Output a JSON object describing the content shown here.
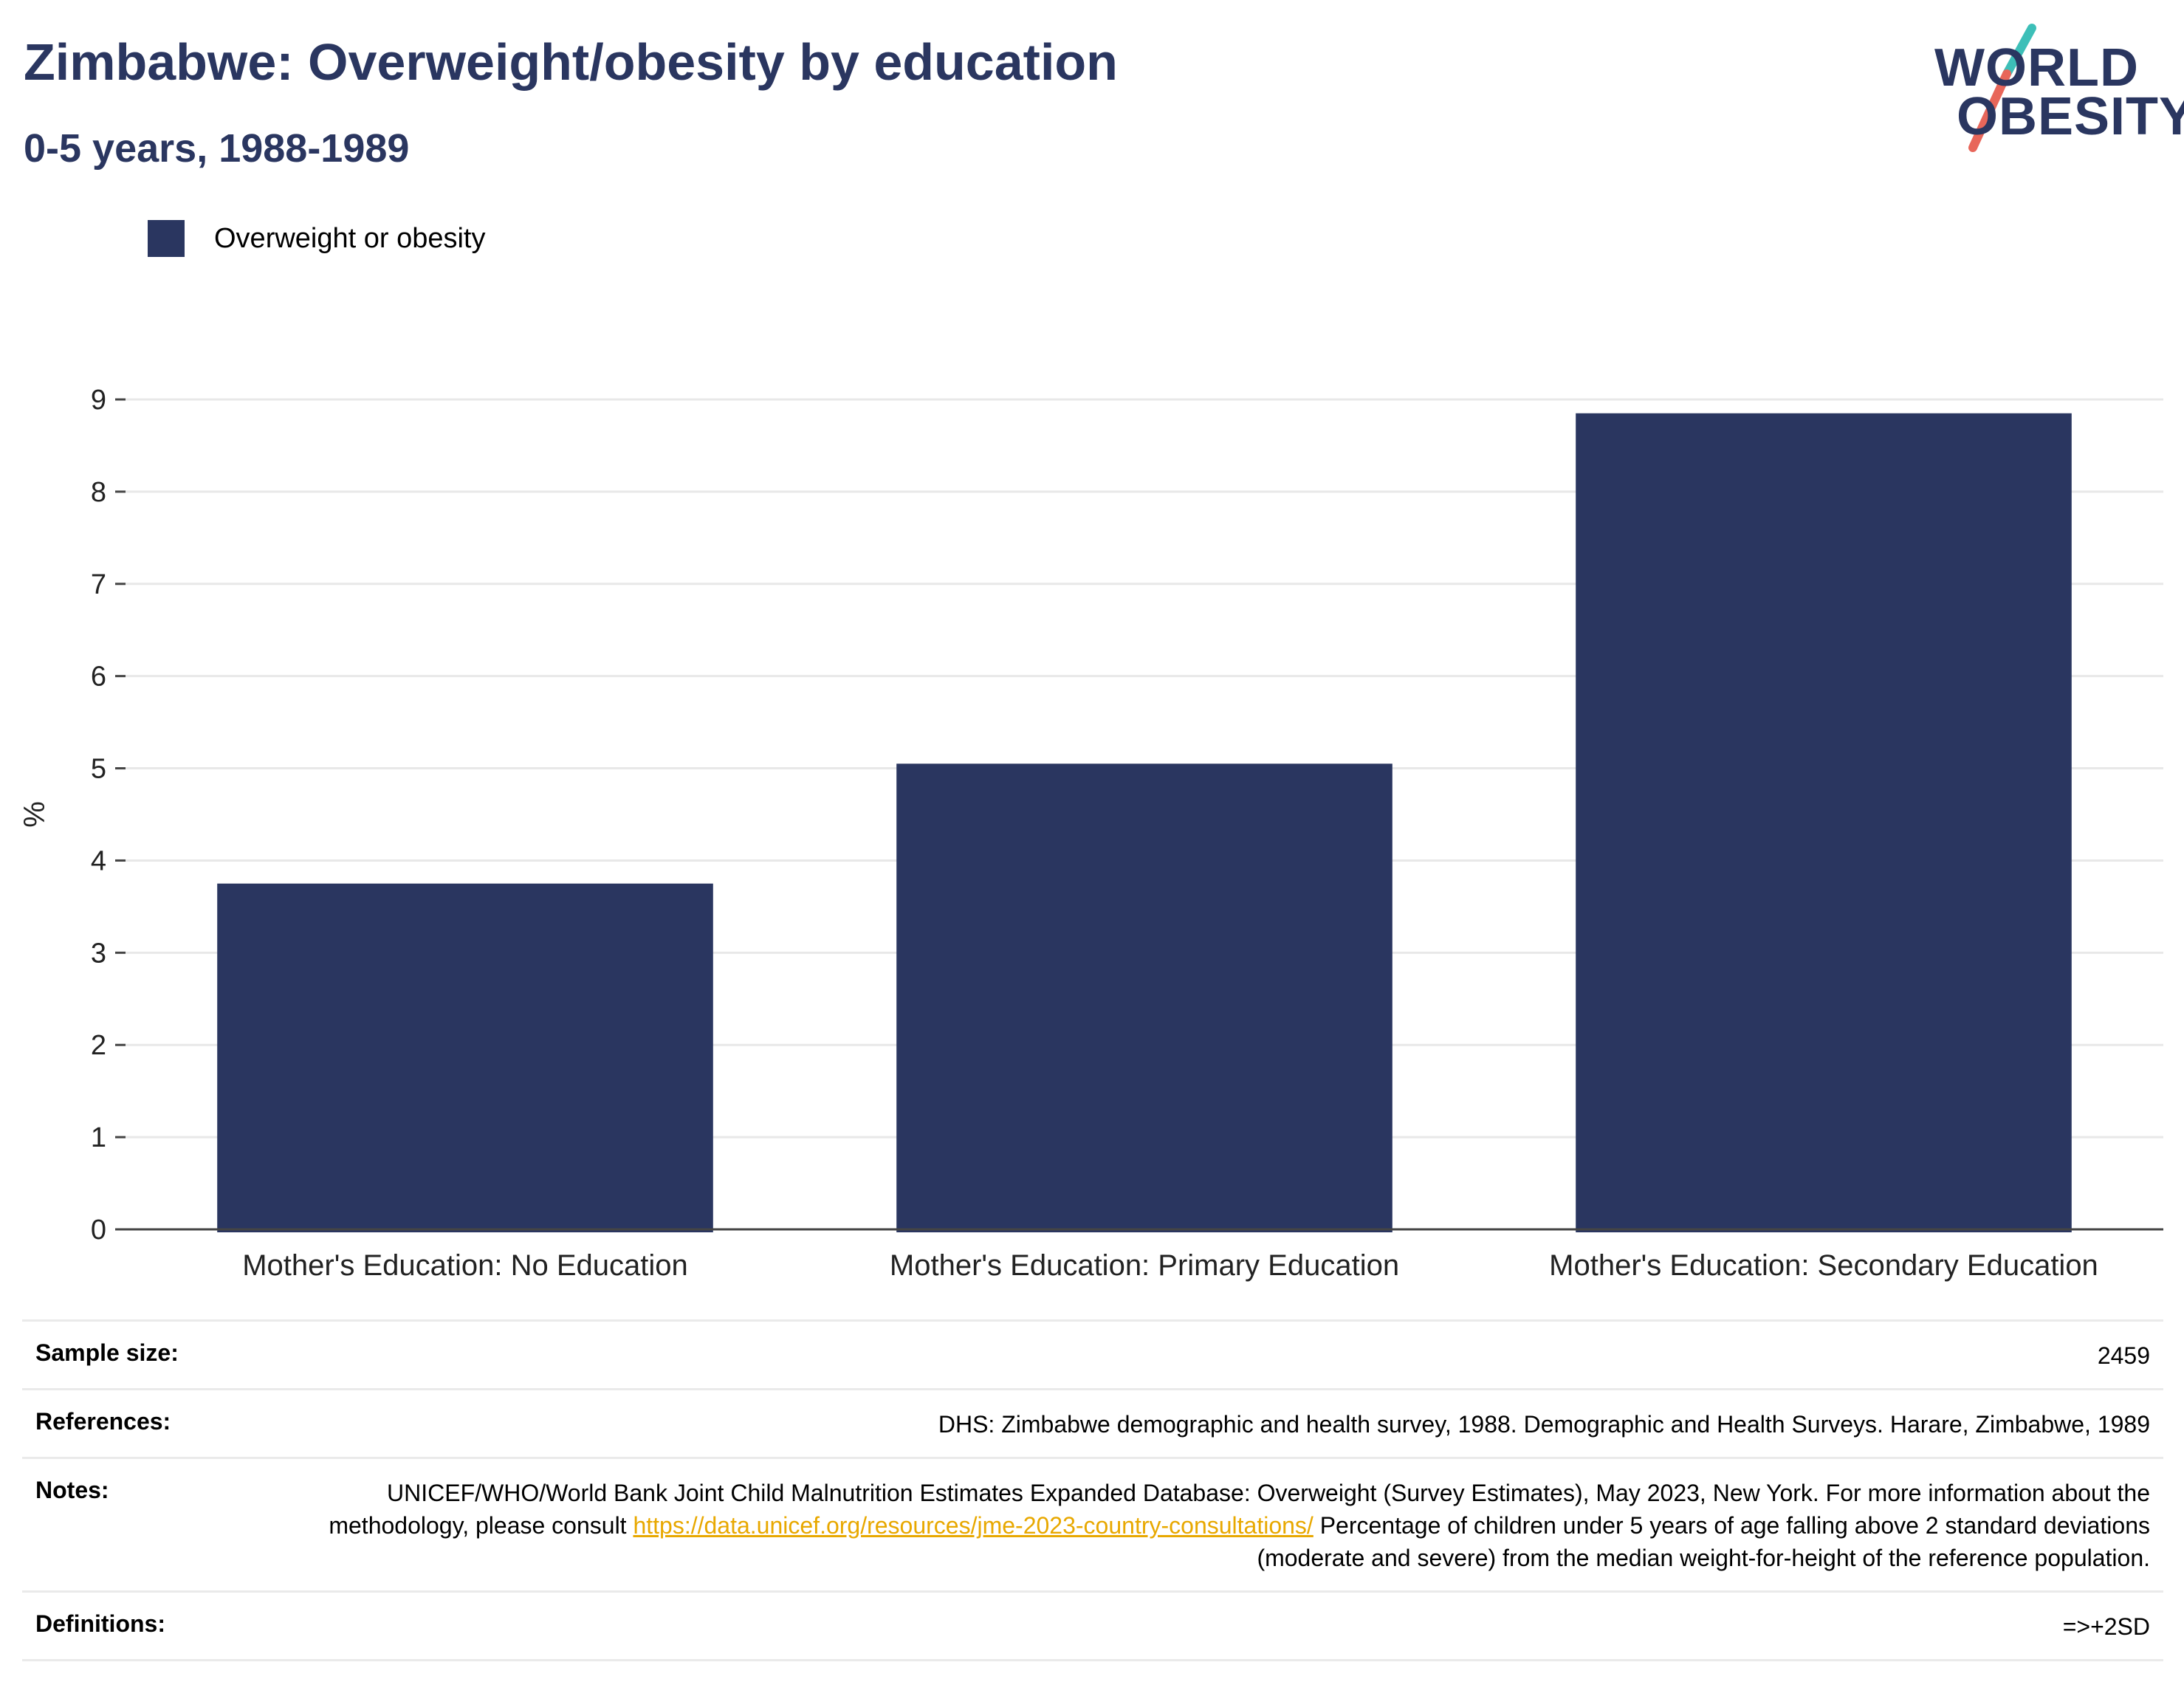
{
  "header": {
    "title": "Zimbabwe: Overweight/obesity by education",
    "subtitle": "0-5 years, 1988-1989"
  },
  "logo": {
    "line1": "WORLD",
    "line2": "OBESITY",
    "colors": {
      "text": "#2a3660",
      "slash_top": "#3dbfb8",
      "slash_bottom": "#e8665a"
    }
  },
  "legend": {
    "label": "Overweight or obesity",
    "color": "#2a3660"
  },
  "chart_data": {
    "type": "bar",
    "categories": [
      "Mother's Education: No Education",
      "Mother's Education: Primary Education",
      "Mother's Education: Secondary Education"
    ],
    "series": [
      {
        "name": "Overweight or obesity",
        "values": [
          3.75,
          5.05,
          8.85
        ],
        "color": "#2a3660"
      }
    ],
    "title": "Zimbabwe: Overweight/obesity by education",
    "subtitle": "0-5 years, 1988-1989",
    "xlabel": "",
    "ylabel": "%",
    "ylim": [
      0,
      9
    ],
    "yticks": [
      0,
      1,
      2,
      3,
      4,
      5,
      6,
      7,
      8,
      9
    ],
    "grid": true,
    "legend_position": "top-left"
  },
  "meta": {
    "sample_size": {
      "label": "Sample size:",
      "value": "2459"
    },
    "references": {
      "label": "References:",
      "value": "DHS: Zimbabwe demographic and health survey, 1988. Demographic and Health Surveys. Harare, Zimbabwe, 1989"
    },
    "notes": {
      "label": "Notes:",
      "text_before": "UNICEF/WHO/World Bank Joint Child Malnutrition Estimates Expanded Database: Overweight (Survey Estimates), May 2023, New York. For more information about the methodology, please consult ",
      "link": "https://data.unicef.org/resources/jme-2023-country-consultations/",
      "text_after": " Percentage of children under 5 years of age falling above 2 standard deviations (moderate and severe) from the median weight-for-height of the reference population."
    },
    "definitions": {
      "label": "Definitions:",
      "value": "=>+2SD"
    }
  }
}
